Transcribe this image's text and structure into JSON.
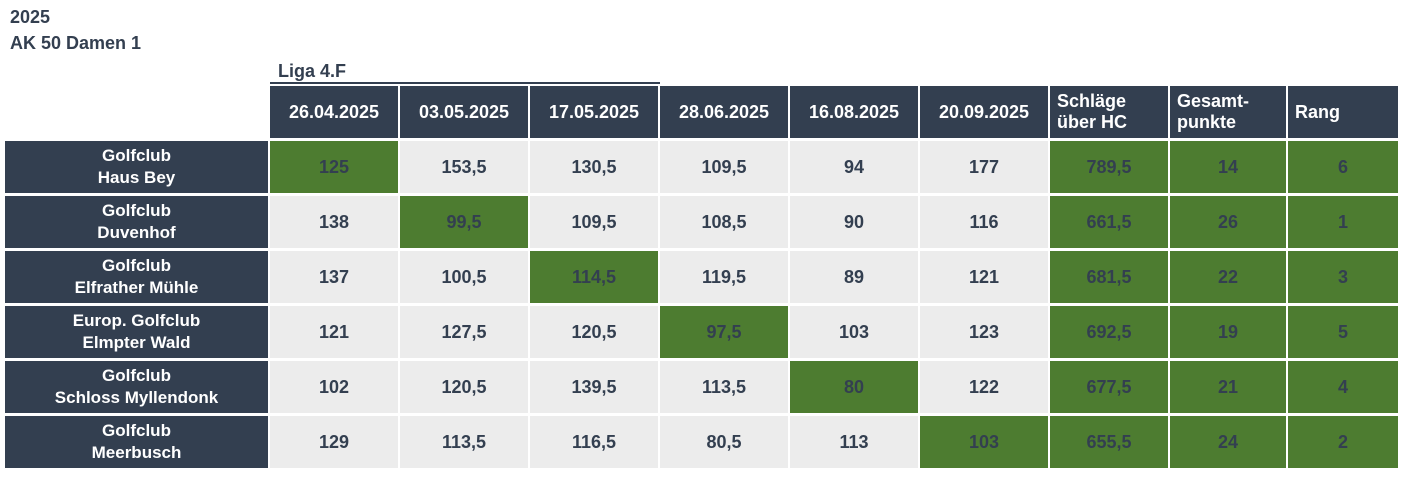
{
  "header": {
    "year": "2025",
    "group": "AK 50 Damen 1",
    "liga": "Liga 4.F"
  },
  "table": {
    "date_columns": [
      "26.04.2025",
      "03.05.2025",
      "17.05.2025",
      "28.06.2025",
      "16.08.2025",
      "20.09.2025"
    ],
    "summary_columns": [
      {
        "line1": "Schläge",
        "line2": "über HC"
      },
      {
        "line1": "Gesamt-",
        "line2": "punkte"
      },
      {
        "line1": "Rang",
        "line2": ""
      }
    ],
    "rows": [
      {
        "club_line1": "Golfclub",
        "club_line2": "Haus Bey",
        "scores": [
          "125",
          "153,5",
          "130,5",
          "109,5",
          "94",
          "177"
        ],
        "highlight_col": 0,
        "schlaege_ueber_hc": "789,5",
        "gesamtpunkte": "14",
        "rang": "6"
      },
      {
        "club_line1": "Golfclub",
        "club_line2": "Duvenhof",
        "scores": [
          "138",
          "99,5",
          "109,5",
          "108,5",
          "90",
          "116"
        ],
        "highlight_col": 1,
        "schlaege_ueber_hc": "661,5",
        "gesamtpunkte": "26",
        "rang": "1"
      },
      {
        "club_line1": "Golfclub",
        "club_line2": "Elfrather Mühle",
        "scores": [
          "137",
          "100,5",
          "114,5",
          "119,5",
          "89",
          "121"
        ],
        "highlight_col": 2,
        "schlaege_ueber_hc": "681,5",
        "gesamtpunkte": "22",
        "rang": "3"
      },
      {
        "club_line1": "Europ. Golfclub",
        "club_line2": "Elmpter Wald",
        "scores": [
          "121",
          "127,5",
          "120,5",
          "97,5",
          "103",
          "123"
        ],
        "highlight_col": 3,
        "schlaege_ueber_hc": "692,5",
        "gesamtpunkte": "19",
        "rang": "5"
      },
      {
        "club_line1": "Golfclub",
        "club_line2": "Schloss Myllendonk",
        "scores": [
          "102",
          "120,5",
          "139,5",
          "113,5",
          "80",
          "122"
        ],
        "highlight_col": 4,
        "schlaege_ueber_hc": "677,5",
        "gesamtpunkte": "21",
        "rang": "4"
      },
      {
        "club_line1": "Golfclub",
        "club_line2": "Meerbusch",
        "scores": [
          "129",
          "113,5",
          "116,5",
          "80,5",
          "113",
          "103"
        ],
        "highlight_col": 5,
        "schlaege_ueber_hc": "655,5",
        "gesamtpunkte": "24",
        "rang": "2"
      }
    ]
  },
  "colors": {
    "navy": "#333F50",
    "green": "#4D7C30",
    "light_gray": "#ECECEC",
    "gridline_white": "#FFFFFF"
  }
}
